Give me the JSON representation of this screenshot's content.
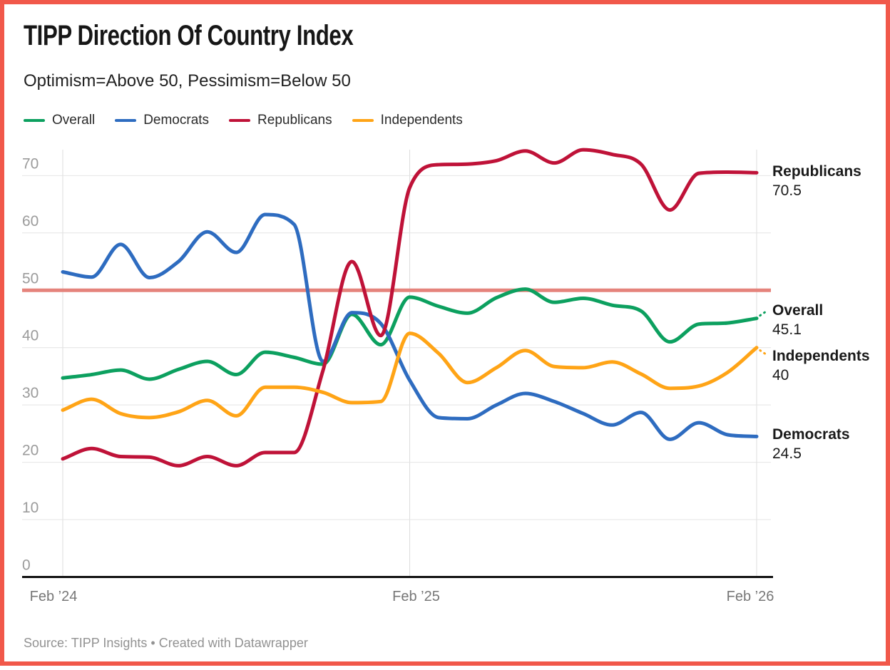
{
  "window": {
    "frame_color": "#f1584a",
    "background": "#ffffff"
  },
  "header": {
    "title": "TIPP Direction Of Country Index",
    "subtitle": "Optimism=Above 50, Pessimism=Below 50"
  },
  "legend": {
    "items": [
      {
        "label": "Overall",
        "color": "#0ca05f"
      },
      {
        "label": "Democrats",
        "color": "#2e6cc0"
      },
      {
        "label": "Republicans",
        "color": "#bf1238"
      },
      {
        "label": "Independents",
        "color": "#ffa416"
      }
    ]
  },
  "chart_data": {
    "type": "line",
    "title": "TIPP Direction Of Country Index",
    "subtitle": "Optimism=Above 50, Pessimism=Below 50",
    "x": [
      "Feb ’24",
      "Mar ’24",
      "Apr ’24",
      "May ’24",
      "Jun ’24",
      "Jul ’24",
      "Aug ’24",
      "Sep ’24",
      "Oct ’24",
      "Nov ’24",
      "Dec ’24",
      "Jan ’25",
      "Feb ’25",
      "Mar ’25",
      "Apr ’25",
      "May ’25",
      "Jun ’25",
      "Jul ’25",
      "Aug ’25",
      "Sep ’25",
      "Oct ’25",
      "Nov ’25",
      "Dec ’25",
      "Jan ’26",
      "Feb ’26"
    ],
    "series": [
      {
        "name": "Overall",
        "color": "#0ca05f",
        "end_value": "45.1",
        "values": [
          34.7,
          35.3,
          36.1,
          34.5,
          36.2,
          37.6,
          35.3,
          39.2,
          38.3,
          37.1,
          45.8,
          40.5,
          48.8,
          47.2,
          46.0,
          48.7,
          50.2,
          47.9,
          48.6,
          47.4,
          46.4,
          41.0,
          44.1,
          44.3,
          45.1
        ]
      },
      {
        "name": "Democrats",
        "color": "#2e6cc0",
        "end_value": "24.5",
        "values": [
          53.2,
          52.3,
          58.0,
          52.2,
          55.0,
          60.2,
          56.6,
          63.2,
          61.5,
          37.6,
          46.1,
          44.2,
          34.3,
          27.8,
          27.6,
          30.0,
          32.0,
          30.6,
          28.5,
          26.5,
          28.7,
          24.0,
          26.9,
          24.8,
          24.5
        ]
      },
      {
        "name": "Republicans",
        "color": "#bf1238",
        "end_value": "70.5",
        "values": [
          20.6,
          22.4,
          21.0,
          20.9,
          19.4,
          21.0,
          19.4,
          21.7,
          21.7,
          36.0,
          55.0,
          42.1,
          67.9,
          71.9,
          72.0,
          72.6,
          74.3,
          72.2,
          74.5,
          73.7,
          72.0,
          64.0,
          70.4,
          70.6,
          70.5
        ]
      },
      {
        "name": "Independents",
        "color": "#ffa416",
        "end_value": "40",
        "values": [
          29.1,
          31.0,
          28.5,
          27.8,
          28.8,
          30.8,
          28.1,
          33.1,
          33.1,
          32.2,
          30.4,
          30.6,
          42.5,
          39.0,
          33.9,
          36.5,
          39.5,
          36.7,
          36.5,
          37.5,
          35.4,
          32.9,
          33.3,
          35.7,
          40.0
        ]
      }
    ],
    "yticks": [
      0,
      10,
      20,
      30,
      40,
      50,
      60,
      70
    ],
    "xticks": [
      {
        "label": "Feb ’24",
        "index": 0
      },
      {
        "label": "Feb ’25",
        "index": 12
      },
      {
        "label": "Feb ’26",
        "index": 24
      }
    ],
    "reference_line": {
      "value": 50,
      "color": "#e5837c"
    },
    "ylim": [
      0,
      75
    ],
    "grid": true,
    "legend_position": "top"
  },
  "end_labels": [
    {
      "series": "Republicans",
      "label": "Republicans",
      "value": "70.5"
    },
    {
      "series": "Overall",
      "label": "Overall",
      "value": "45.1"
    },
    {
      "series": "Independents",
      "label": "Independents",
      "value": "40"
    },
    {
      "series": "Democrats",
      "label": "Democrats",
      "value": "24.5"
    }
  ],
  "footer": {
    "source": "Source: TIPP Insights • Created with Datawrapper"
  }
}
